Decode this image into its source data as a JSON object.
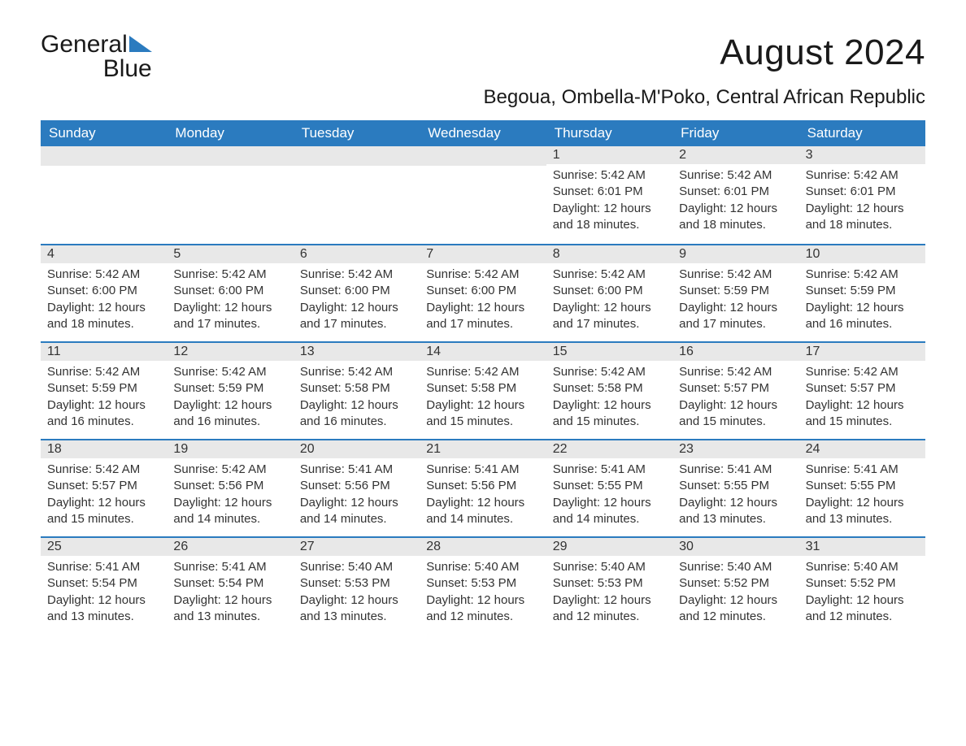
{
  "logo": {
    "word1": "General",
    "word2": "Blue"
  },
  "title": "August 2024",
  "location": "Begoua, Ombella-M'Poko, Central African Republic",
  "colors": {
    "header_bg": "#2b7bbf",
    "header_text": "#ffffff",
    "number_row_bg": "#e8e8e8",
    "week_border": "#2b7bbf",
    "body_text": "#333333",
    "page_bg": "#ffffff",
    "logo_blue": "#2b7bbf"
  },
  "day_headers": [
    "Sunday",
    "Monday",
    "Tuesday",
    "Wednesday",
    "Thursday",
    "Friday",
    "Saturday"
  ],
  "weeks": [
    [
      {
        "day": "",
        "sunrise": "",
        "sunset": "",
        "daylight": ""
      },
      {
        "day": "",
        "sunrise": "",
        "sunset": "",
        "daylight": ""
      },
      {
        "day": "",
        "sunrise": "",
        "sunset": "",
        "daylight": ""
      },
      {
        "day": "",
        "sunrise": "",
        "sunset": "",
        "daylight": ""
      },
      {
        "day": "1",
        "sunrise": "Sunrise: 5:42 AM",
        "sunset": "Sunset: 6:01 PM",
        "daylight": "Daylight: 12 hours and 18 minutes."
      },
      {
        "day": "2",
        "sunrise": "Sunrise: 5:42 AM",
        "sunset": "Sunset: 6:01 PM",
        "daylight": "Daylight: 12 hours and 18 minutes."
      },
      {
        "day": "3",
        "sunrise": "Sunrise: 5:42 AM",
        "sunset": "Sunset: 6:01 PM",
        "daylight": "Daylight: 12 hours and 18 minutes."
      }
    ],
    [
      {
        "day": "4",
        "sunrise": "Sunrise: 5:42 AM",
        "sunset": "Sunset: 6:00 PM",
        "daylight": "Daylight: 12 hours and 18 minutes."
      },
      {
        "day": "5",
        "sunrise": "Sunrise: 5:42 AM",
        "sunset": "Sunset: 6:00 PM",
        "daylight": "Daylight: 12 hours and 17 minutes."
      },
      {
        "day": "6",
        "sunrise": "Sunrise: 5:42 AM",
        "sunset": "Sunset: 6:00 PM",
        "daylight": "Daylight: 12 hours and 17 minutes."
      },
      {
        "day": "7",
        "sunrise": "Sunrise: 5:42 AM",
        "sunset": "Sunset: 6:00 PM",
        "daylight": "Daylight: 12 hours and 17 minutes."
      },
      {
        "day": "8",
        "sunrise": "Sunrise: 5:42 AM",
        "sunset": "Sunset: 6:00 PM",
        "daylight": "Daylight: 12 hours and 17 minutes."
      },
      {
        "day": "9",
        "sunrise": "Sunrise: 5:42 AM",
        "sunset": "Sunset: 5:59 PM",
        "daylight": "Daylight: 12 hours and 17 minutes."
      },
      {
        "day": "10",
        "sunrise": "Sunrise: 5:42 AM",
        "sunset": "Sunset: 5:59 PM",
        "daylight": "Daylight: 12 hours and 16 minutes."
      }
    ],
    [
      {
        "day": "11",
        "sunrise": "Sunrise: 5:42 AM",
        "sunset": "Sunset: 5:59 PM",
        "daylight": "Daylight: 12 hours and 16 minutes."
      },
      {
        "day": "12",
        "sunrise": "Sunrise: 5:42 AM",
        "sunset": "Sunset: 5:59 PM",
        "daylight": "Daylight: 12 hours and 16 minutes."
      },
      {
        "day": "13",
        "sunrise": "Sunrise: 5:42 AM",
        "sunset": "Sunset: 5:58 PM",
        "daylight": "Daylight: 12 hours and 16 minutes."
      },
      {
        "day": "14",
        "sunrise": "Sunrise: 5:42 AM",
        "sunset": "Sunset: 5:58 PM",
        "daylight": "Daylight: 12 hours and 15 minutes."
      },
      {
        "day": "15",
        "sunrise": "Sunrise: 5:42 AM",
        "sunset": "Sunset: 5:58 PM",
        "daylight": "Daylight: 12 hours and 15 minutes."
      },
      {
        "day": "16",
        "sunrise": "Sunrise: 5:42 AM",
        "sunset": "Sunset: 5:57 PM",
        "daylight": "Daylight: 12 hours and 15 minutes."
      },
      {
        "day": "17",
        "sunrise": "Sunrise: 5:42 AM",
        "sunset": "Sunset: 5:57 PM",
        "daylight": "Daylight: 12 hours and 15 minutes."
      }
    ],
    [
      {
        "day": "18",
        "sunrise": "Sunrise: 5:42 AM",
        "sunset": "Sunset: 5:57 PM",
        "daylight": "Daylight: 12 hours and 15 minutes."
      },
      {
        "day": "19",
        "sunrise": "Sunrise: 5:42 AM",
        "sunset": "Sunset: 5:56 PM",
        "daylight": "Daylight: 12 hours and 14 minutes."
      },
      {
        "day": "20",
        "sunrise": "Sunrise: 5:41 AM",
        "sunset": "Sunset: 5:56 PM",
        "daylight": "Daylight: 12 hours and 14 minutes."
      },
      {
        "day": "21",
        "sunrise": "Sunrise: 5:41 AM",
        "sunset": "Sunset: 5:56 PM",
        "daylight": "Daylight: 12 hours and 14 minutes."
      },
      {
        "day": "22",
        "sunrise": "Sunrise: 5:41 AM",
        "sunset": "Sunset: 5:55 PM",
        "daylight": "Daylight: 12 hours and 14 minutes."
      },
      {
        "day": "23",
        "sunrise": "Sunrise: 5:41 AM",
        "sunset": "Sunset: 5:55 PM",
        "daylight": "Daylight: 12 hours and 13 minutes."
      },
      {
        "day": "24",
        "sunrise": "Sunrise: 5:41 AM",
        "sunset": "Sunset: 5:55 PM",
        "daylight": "Daylight: 12 hours and 13 minutes."
      }
    ],
    [
      {
        "day": "25",
        "sunrise": "Sunrise: 5:41 AM",
        "sunset": "Sunset: 5:54 PM",
        "daylight": "Daylight: 12 hours and 13 minutes."
      },
      {
        "day": "26",
        "sunrise": "Sunrise: 5:41 AM",
        "sunset": "Sunset: 5:54 PM",
        "daylight": "Daylight: 12 hours and 13 minutes."
      },
      {
        "day": "27",
        "sunrise": "Sunrise: 5:40 AM",
        "sunset": "Sunset: 5:53 PM",
        "daylight": "Daylight: 12 hours and 13 minutes."
      },
      {
        "day": "28",
        "sunrise": "Sunrise: 5:40 AM",
        "sunset": "Sunset: 5:53 PM",
        "daylight": "Daylight: 12 hours and 12 minutes."
      },
      {
        "day": "29",
        "sunrise": "Sunrise: 5:40 AM",
        "sunset": "Sunset: 5:53 PM",
        "daylight": "Daylight: 12 hours and 12 minutes."
      },
      {
        "day": "30",
        "sunrise": "Sunrise: 5:40 AM",
        "sunset": "Sunset: 5:52 PM",
        "daylight": "Daylight: 12 hours and 12 minutes."
      },
      {
        "day": "31",
        "sunrise": "Sunrise: 5:40 AM",
        "sunset": "Sunset: 5:52 PM",
        "daylight": "Daylight: 12 hours and 12 minutes."
      }
    ]
  ]
}
